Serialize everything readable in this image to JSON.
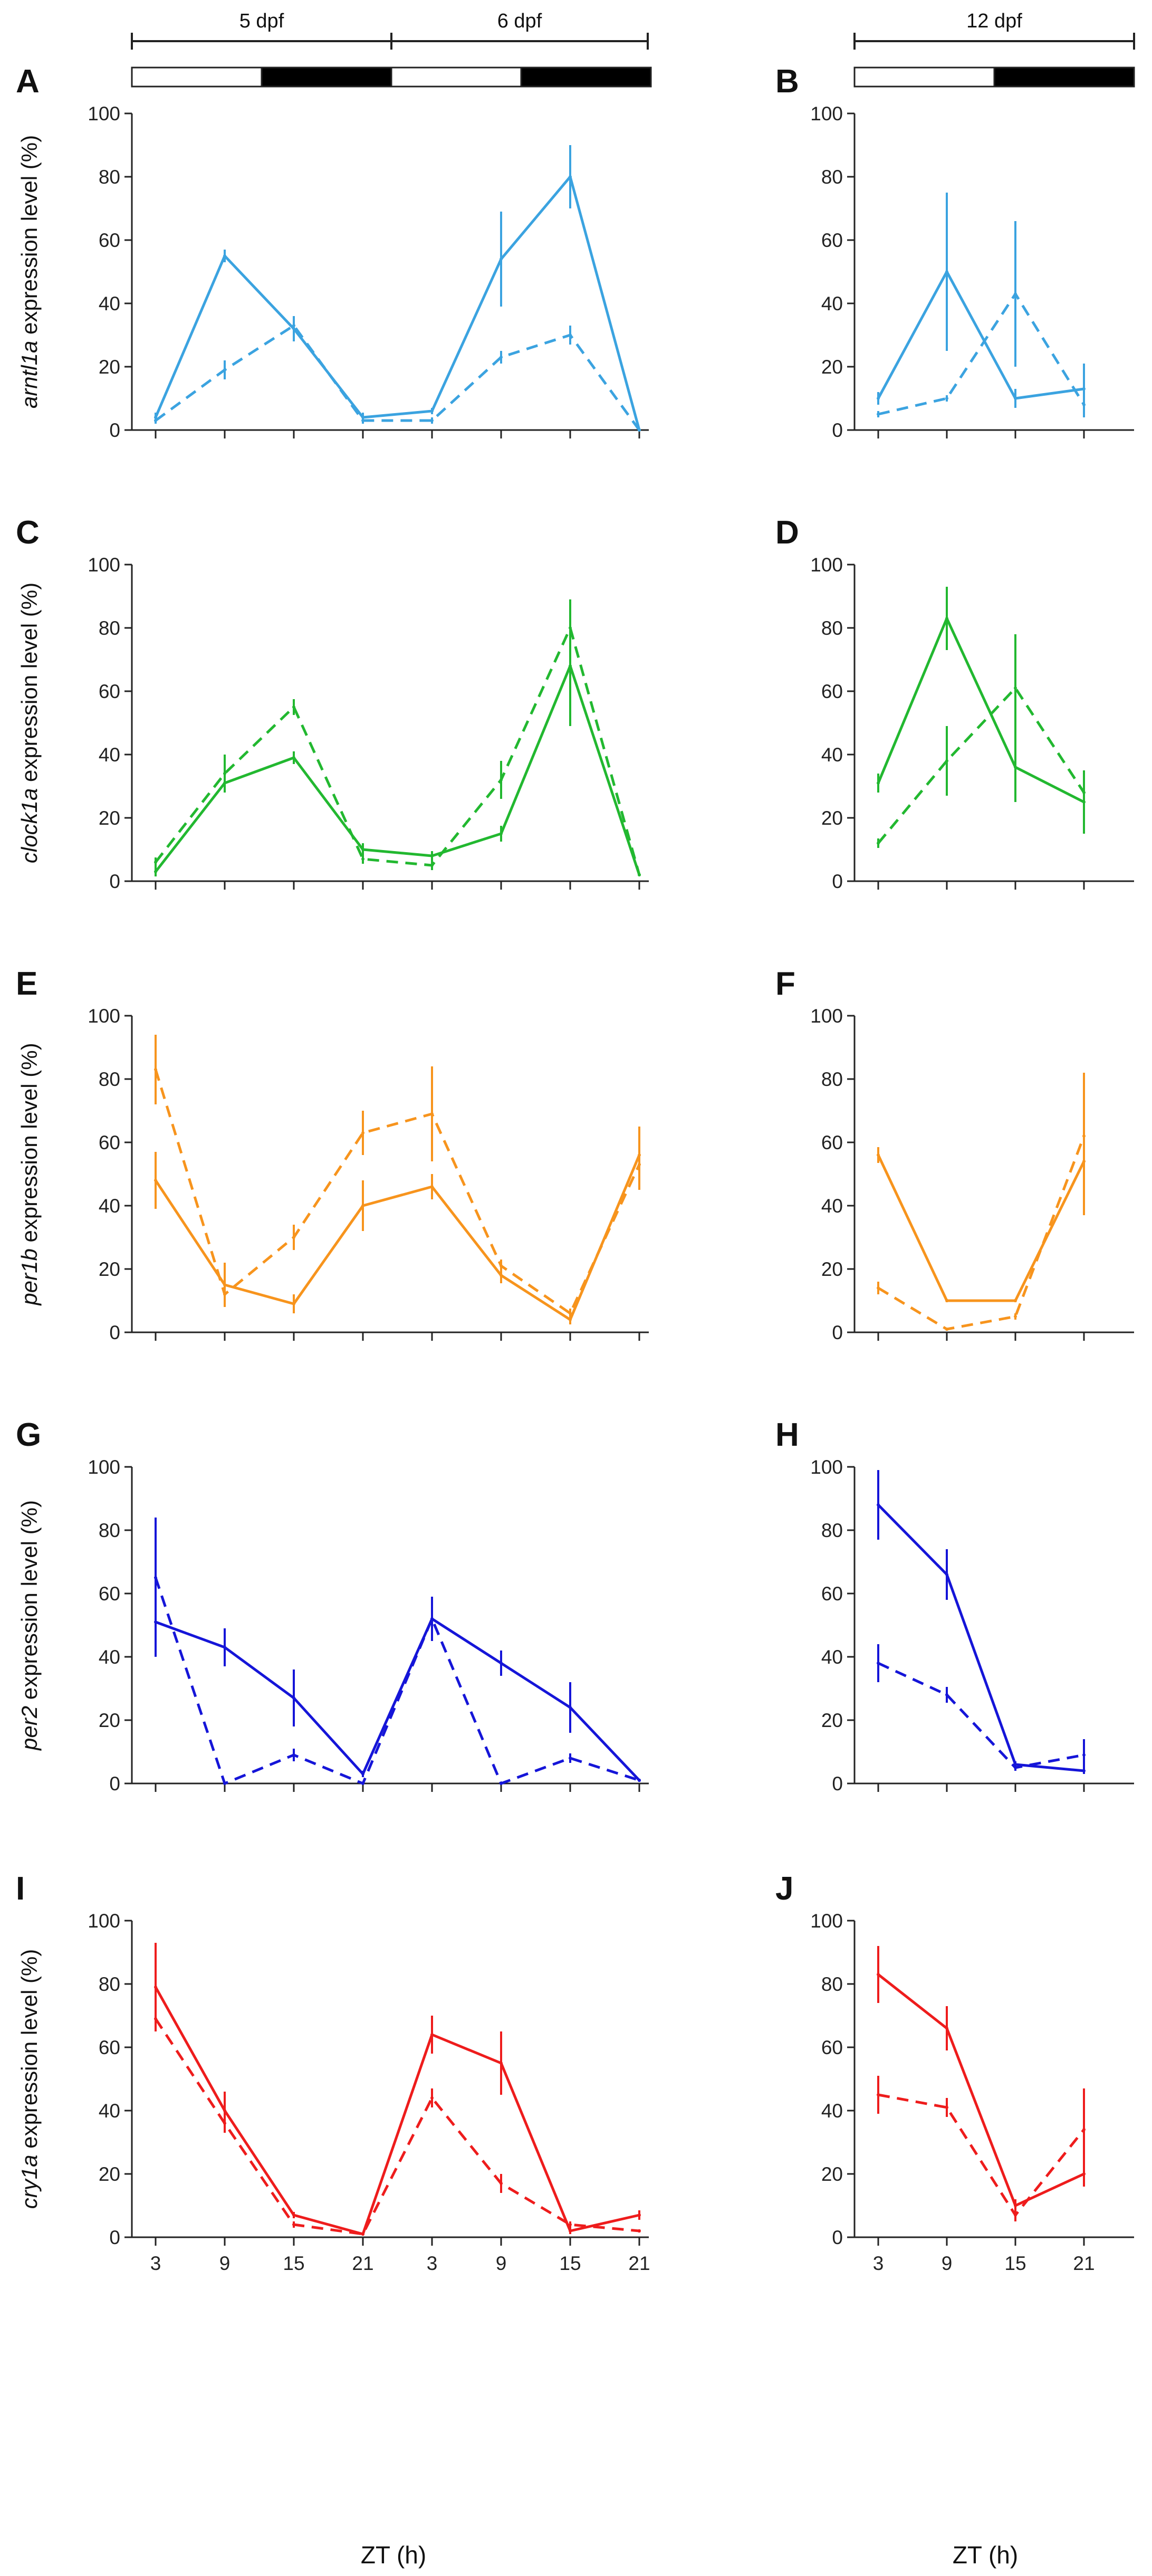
{
  "figure": {
    "xlabel": "ZT (h)",
    "headers": [
      "5 dpf",
      "6 dpf",
      "12 dpf"
    ],
    "colors": {
      "arntl1a": "#3ba3e0",
      "clock1a": "#22b830",
      "per1b": "#f7941d",
      "per2": "#1515d8",
      "cry1a": "#ee1c1c",
      "axis": "#222222"
    }
  },
  "chart_data": [
    {
      "panel": "A",
      "type": "line",
      "gene": "arntl1a",
      "ylabel_gene": "arntl1a",
      "ylabel_rest": " expression level (%)",
      "x": [
        "3",
        "9",
        "15",
        "21",
        "3",
        "9",
        "15",
        "21"
      ],
      "ylim": [
        0,
        100
      ],
      "yticks": [
        0,
        20,
        40,
        60,
        80,
        100
      ],
      "series": [
        {
          "name": "solid",
          "dash": false,
          "values": [
            4,
            55,
            32,
            4,
            6,
            54,
            80,
            0
          ],
          "err": [
            1.5,
            2,
            4,
            1.5,
            1,
            15,
            10,
            0
          ]
        },
        {
          "name": "dashed",
          "dash": true,
          "values": [
            3,
            19,
            33,
            3,
            3,
            23,
            30,
            0
          ],
          "err": [
            1,
            3,
            3,
            1,
            1,
            2,
            3,
            0
          ]
        }
      ]
    },
    {
      "panel": "B",
      "type": "line",
      "gene": "arntl1a",
      "x": [
        "3",
        "9",
        "15",
        "21"
      ],
      "ylim": [
        0,
        100
      ],
      "yticks": [
        0,
        20,
        40,
        60,
        80,
        100
      ],
      "series": [
        {
          "name": "solid",
          "dash": false,
          "values": [
            10,
            50,
            10,
            13
          ],
          "err": [
            2,
            25,
            3,
            8
          ]
        },
        {
          "name": "dashed",
          "dash": true,
          "values": [
            5,
            10,
            43,
            8
          ],
          "err": [
            1,
            1,
            23,
            4
          ]
        }
      ]
    },
    {
      "panel": "C",
      "type": "line",
      "gene": "clock1a",
      "ylabel_gene": "clock1a",
      "ylabel_rest": " expression level (%)",
      "x": [
        "3",
        "9",
        "15",
        "21",
        "3",
        "9",
        "15",
        "21"
      ],
      "ylim": [
        0,
        100
      ],
      "yticks": [
        0,
        20,
        40,
        60,
        80,
        100
      ],
      "series": [
        {
          "name": "solid",
          "dash": false,
          "values": [
            3,
            31,
            39,
            10,
            8,
            15,
            68,
            2
          ],
          "err": [
            1.5,
            2,
            2,
            2,
            1.5,
            2.5,
            19,
            0
          ]
        },
        {
          "name": "dashed",
          "dash": true,
          "values": [
            6,
            34,
            55,
            7,
            5,
            32,
            80,
            2
          ],
          "err": [
            1.5,
            6,
            2.5,
            1.5,
            1.5,
            6,
            9,
            0
          ]
        }
      ]
    },
    {
      "panel": "D",
      "type": "line",
      "gene": "clock1a",
      "x": [
        "3",
        "9",
        "15",
        "21"
      ],
      "ylim": [
        0,
        100
      ],
      "yticks": [
        0,
        20,
        40,
        60,
        80,
        100
      ],
      "series": [
        {
          "name": "solid",
          "dash": false,
          "values": [
            31,
            83,
            36,
            25
          ],
          "err": [
            3,
            10,
            11,
            10
          ]
        },
        {
          "name": "dashed",
          "dash": true,
          "values": [
            12,
            38,
            61,
            28
          ],
          "err": [
            1.5,
            11,
            17,
            7
          ]
        }
      ]
    },
    {
      "panel": "E",
      "type": "line",
      "gene": "per1b",
      "ylabel_gene": "per1b",
      "ylabel_rest": " expression level (%)",
      "x": [
        "3",
        "9",
        "15",
        "21",
        "3",
        "9",
        "15",
        "21"
      ],
      "ylim": [
        0,
        100
      ],
      "yticks": [
        0,
        20,
        40,
        60,
        80,
        100
      ],
      "series": [
        {
          "name": "solid",
          "dash": false,
          "values": [
            48,
            15,
            9,
            40,
            46,
            18,
            4,
            56
          ],
          "err": [
            9,
            7,
            3,
            8,
            4,
            2.5,
            1.5,
            9
          ]
        },
        {
          "name": "dashed",
          "dash": true,
          "values": [
            83,
            12,
            30,
            63,
            69,
            21,
            6,
            53
          ],
          "err": [
            11,
            4,
            4,
            7,
            15,
            2,
            1.5,
            8
          ]
        }
      ]
    },
    {
      "panel": "F",
      "type": "line",
      "gene": "per1b",
      "x": [
        "3",
        "9",
        "15",
        "21"
      ],
      "ylim": [
        0,
        100
      ],
      "yticks": [
        0,
        20,
        40,
        60,
        80,
        100
      ],
      "series": [
        {
          "name": "solid",
          "dash": false,
          "values": [
            56,
            10,
            10,
            54
          ],
          "err": [
            2.5,
            0.5,
            0.5,
            17
          ]
        },
        {
          "name": "dashed",
          "dash": true,
          "values": [
            14,
            1,
            5,
            62
          ],
          "err": [
            2,
            0.5,
            1,
            20
          ]
        }
      ]
    },
    {
      "panel": "G",
      "type": "line",
      "gene": "per2",
      "ylabel_gene": "per2",
      "ylabel_rest": " expression level (%)",
      "x": [
        "3",
        "9",
        "15",
        "21",
        "3",
        "9",
        "15",
        "21"
      ],
      "ylim": [
        0,
        100
      ],
      "yticks": [
        0,
        20,
        40,
        60,
        80,
        100
      ],
      "series": [
        {
          "name": "solid",
          "dash": false,
          "values": [
            51,
            43,
            27,
            3,
            52,
            38,
            24,
            1
          ],
          "err": [
            11,
            6,
            9,
            1,
            7,
            4,
            8,
            0.5
          ]
        },
        {
          "name": "dashed",
          "dash": true,
          "values": [
            65,
            0,
            9,
            0,
            52,
            0,
            8,
            1
          ],
          "err": [
            19,
            0.5,
            2,
            0.5,
            3,
            0.5,
            1.5,
            0.5
          ]
        }
      ]
    },
    {
      "panel": "H",
      "type": "line",
      "gene": "per2",
      "x": [
        "3",
        "9",
        "15",
        "21"
      ],
      "ylim": [
        0,
        100
      ],
      "yticks": [
        0,
        20,
        40,
        60,
        80,
        100
      ],
      "series": [
        {
          "name": "solid",
          "dash": false,
          "values": [
            88,
            66,
            6,
            4
          ],
          "err": [
            11,
            8,
            1,
            1
          ]
        },
        {
          "name": "dashed",
          "dash": true,
          "values": [
            38,
            28,
            5,
            9
          ],
          "err": [
            6,
            2.5,
            1,
            5
          ]
        }
      ]
    },
    {
      "panel": "I",
      "type": "line",
      "gene": "cry1a",
      "ylabel_gene": "cry1a",
      "ylabel_rest": " expression level (%)",
      "x": [
        "3",
        "9",
        "15",
        "21",
        "3",
        "9",
        "15",
        "21"
      ],
      "ylim": [
        0,
        100
      ],
      "yticks": [
        0,
        20,
        40,
        60,
        80,
        100
      ],
      "series": [
        {
          "name": "solid",
          "dash": false,
          "values": [
            79,
            40,
            7,
            1,
            64,
            55,
            2,
            7
          ],
          "err": [
            14,
            6,
            1,
            0.5,
            6,
            10,
            1,
            1.5
          ]
        },
        {
          "name": "dashed",
          "dash": true,
          "values": [
            69,
            36,
            4,
            1,
            44,
            17,
            4,
            2
          ],
          "err": [
            3,
            3,
            1,
            0.5,
            3,
            3,
            1,
            0.5
          ]
        }
      ]
    },
    {
      "panel": "J",
      "type": "line",
      "gene": "cry1a",
      "x": [
        "3",
        "9",
        "15",
        "21"
      ],
      "ylim": [
        0,
        100
      ],
      "yticks": [
        0,
        20,
        40,
        60,
        80,
        100
      ],
      "series": [
        {
          "name": "solid",
          "dash": false,
          "values": [
            83,
            66,
            10,
            20
          ],
          "err": [
            9,
            7,
            2,
            4
          ]
        },
        {
          "name": "dashed",
          "dash": true,
          "values": [
            45,
            41,
            7,
            34
          ],
          "err": [
            6,
            3,
            2,
            13
          ]
        }
      ]
    }
  ]
}
